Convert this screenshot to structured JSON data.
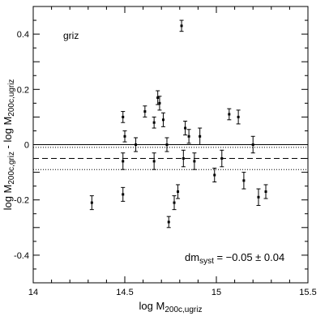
{
  "chart_data": {
    "type": "scatter",
    "corner_label": "griz",
    "xlabel": {
      "main": "log M",
      "sub": "200c,ugriz"
    },
    "ylabel": {
      "main": "log M",
      "sub1": "200c,griz",
      "mid": " - log M",
      "sub2": "200c,ugriz"
    },
    "xlim": [
      14.0,
      15.5
    ],
    "ylim": [
      -0.5,
      0.5
    ],
    "x_major_ticks": [
      14.0,
      14.5,
      15.0,
      15.5
    ],
    "x_tick_labels": [
      "14",
      "14.5",
      "15",
      "15.5"
    ],
    "y_major_ticks": [
      -0.4,
      -0.2,
      0.0,
      0.2,
      0.4
    ],
    "y_tick_labels": [
      "-0.4",
      "-0.2",
      "0",
      "0.2",
      "0.4"
    ],
    "reference_lines": {
      "zero": 0.0,
      "mean": -0.05,
      "band_low": -0.09,
      "band_high": -0.01
    },
    "annotation": {
      "main": "dm",
      "sub": "syst",
      "rest": " = −0.05 ± 0.04"
    },
    "points": [
      {
        "x": 14.32,
        "y": -0.21,
        "err": 0.025
      },
      {
        "x": 14.49,
        "y": 0.1,
        "err": 0.02
      },
      {
        "x": 14.5,
        "y": 0.03,
        "err": 0.02
      },
      {
        "x": 14.49,
        "y": -0.06,
        "err": 0.03
      },
      {
        "x": 14.49,
        "y": -0.18,
        "err": 0.025
      },
      {
        "x": 14.56,
        "y": 0.0,
        "err": 0.025
      },
      {
        "x": 14.61,
        "y": 0.12,
        "err": 0.02
      },
      {
        "x": 14.66,
        "y": 0.08,
        "err": 0.02
      },
      {
        "x": 14.66,
        "y": -0.06,
        "err": 0.03
      },
      {
        "x": 14.68,
        "y": 0.17,
        "err": 0.025
      },
      {
        "x": 14.69,
        "y": 0.15,
        "err": 0.025
      },
      {
        "x": 14.71,
        "y": 0.09,
        "err": 0.025
      },
      {
        "x": 14.73,
        "y": 0.0,
        "err": 0.025
      },
      {
        "x": 14.74,
        "y": -0.28,
        "err": 0.02
      },
      {
        "x": 14.77,
        "y": -0.21,
        "err": 0.025
      },
      {
        "x": 14.79,
        "y": -0.17,
        "err": 0.025
      },
      {
        "x": 14.81,
        "y": 0.43,
        "err": 0.02
      },
      {
        "x": 14.82,
        "y": -0.05,
        "err": 0.03
      },
      {
        "x": 14.83,
        "y": 0.06,
        "err": 0.025
      },
      {
        "x": 14.85,
        "y": 0.03,
        "err": 0.025
      },
      {
        "x": 14.88,
        "y": -0.06,
        "err": 0.03
      },
      {
        "x": 14.91,
        "y": 0.03,
        "err": 0.03
      },
      {
        "x": 14.99,
        "y": -0.11,
        "err": 0.025
      },
      {
        "x": 15.03,
        "y": -0.05,
        "err": 0.03
      },
      {
        "x": 15.07,
        "y": 0.11,
        "err": 0.02
      },
      {
        "x": 15.12,
        "y": 0.1,
        "err": 0.025
      },
      {
        "x": 15.15,
        "y": -0.13,
        "err": 0.03
      },
      {
        "x": 15.2,
        "y": 0.0,
        "err": 0.03
      },
      {
        "x": 15.23,
        "y": -0.19,
        "err": 0.03
      },
      {
        "x": 15.27,
        "y": -0.17,
        "err": 0.025
      }
    ]
  }
}
